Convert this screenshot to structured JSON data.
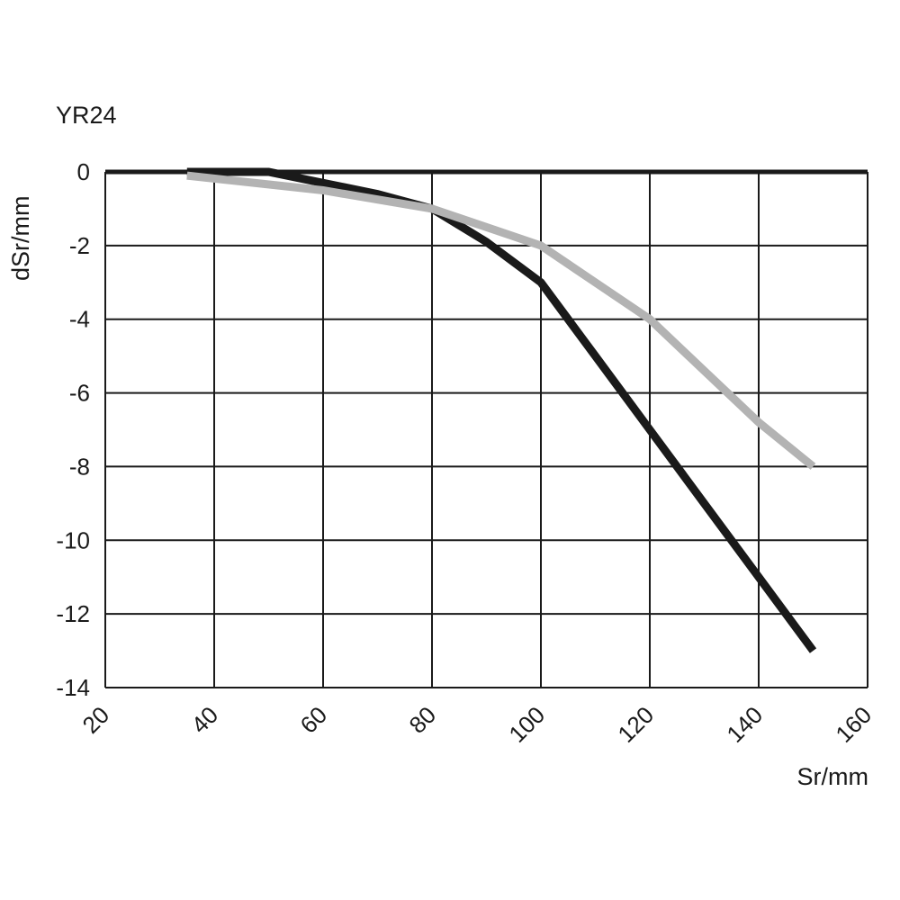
{
  "chart_data": {
    "type": "line",
    "title": "YR24",
    "xlabel": "Sr/mm",
    "ylabel": "dSr/mm",
    "xlim": [
      20,
      160
    ],
    "ylim": [
      -14,
      0
    ],
    "x_ticks": [
      20,
      40,
      60,
      80,
      100,
      120,
      140,
      160
    ],
    "y_ticks": [
      0,
      -2,
      -4,
      -6,
      -8,
      -10,
      -12,
      -14
    ],
    "grid": true,
    "series": [
      {
        "color": "#1a1a1a",
        "points": [
          [
            35,
            0
          ],
          [
            50,
            0
          ],
          [
            60,
            -0.3
          ],
          [
            70,
            -0.6
          ],
          [
            80,
            -1.0
          ],
          [
            90,
            -1.9
          ],
          [
            100,
            -3.0
          ],
          [
            110,
            -5.0
          ],
          [
            120,
            -7.0
          ],
          [
            130,
            -9.0
          ],
          [
            140,
            -11.0
          ],
          [
            150,
            -13.0
          ]
        ]
      },
      {
        "color": "#b3b3b3",
        "points": [
          [
            35,
            -0.1
          ],
          [
            60,
            -0.5
          ],
          [
            80,
            -1.0
          ],
          [
            90,
            -1.5
          ],
          [
            100,
            -2.0
          ],
          [
            110,
            -3.0
          ],
          [
            120,
            -4.0
          ],
          [
            130,
            -5.4
          ],
          [
            140,
            -6.8
          ],
          [
            150,
            -8.0
          ]
        ]
      }
    ]
  }
}
